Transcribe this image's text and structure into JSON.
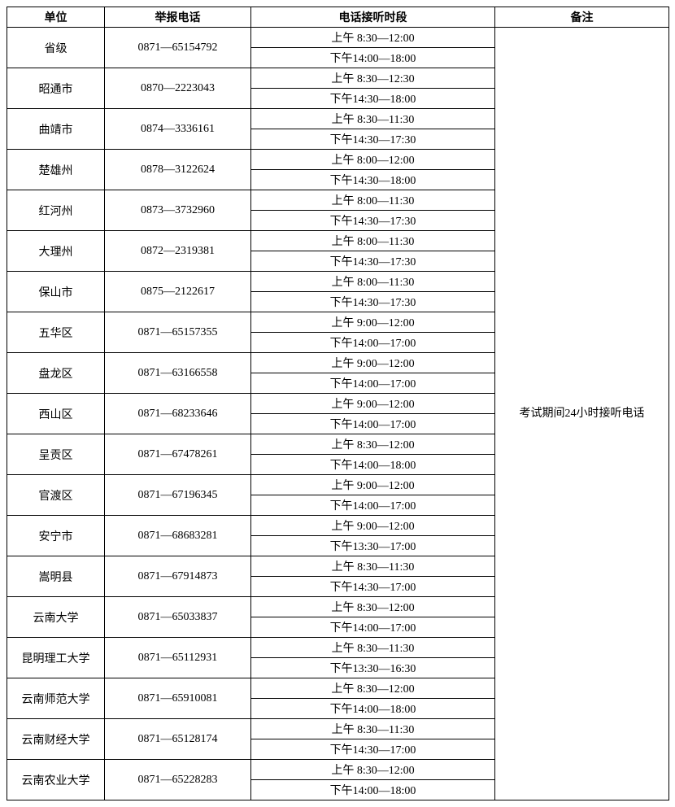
{
  "headers": {
    "unit": "单位",
    "phone": "举报电话",
    "time": "电话接听时段",
    "remark": "备注"
  },
  "remark_text": "考试期间24小时接听电话",
  "rows": [
    {
      "unit": "省级",
      "phone": "0871—65154792",
      "am": "上午 8:30—12:00",
      "pm": "下午14:00—18:00"
    },
    {
      "unit": "昭通市",
      "phone": "0870—2223043",
      "am": "上午 8:30—12:30",
      "pm": "下午14:30—18:00"
    },
    {
      "unit": "曲靖市",
      "phone": "0874—3336161",
      "am": "上午 8:30—11:30",
      "pm": "下午14:30—17:30"
    },
    {
      "unit": "楚雄州",
      "phone": "0878—3122624",
      "am": "上午 8:00—12:00",
      "pm": "下午14:30—18:00"
    },
    {
      "unit": "红河州",
      "phone": "0873—3732960",
      "am": "上午 8:00—11:30",
      "pm": "下午14:30—17:30"
    },
    {
      "unit": "大理州",
      "phone": "0872—2319381",
      "am": "上午 8:00—11:30",
      "pm": "下午14:30—17:30"
    },
    {
      "unit": "保山市",
      "phone": "0875—2122617",
      "am": "上午 8:00—11:30",
      "pm": "下午14:30—17:30"
    },
    {
      "unit": "五华区",
      "phone": "0871—65157355",
      "am": "上午 9:00—12:00",
      "pm": "下午14:00—17:00"
    },
    {
      "unit": "盘龙区",
      "phone": "0871—63166558",
      "am": "上午 9:00—12:00",
      "pm": "下午14:00—17:00"
    },
    {
      "unit": "西山区",
      "phone": "0871—68233646",
      "am": "上午 9:00—12:00",
      "pm": "下午14:00—17:00"
    },
    {
      "unit": "呈贡区",
      "phone": "0871—67478261",
      "am": "上午 8:30—12:00",
      "pm": "下午14:00—18:00"
    },
    {
      "unit": "官渡区",
      "phone": "0871—67196345",
      "am": "上午 9:00—12:00",
      "pm": "下午14:00—17:00"
    },
    {
      "unit": "安宁市",
      "phone": "0871—68683281",
      "am": "上午 9:00—12:00",
      "pm": "下午13:30—17:00"
    },
    {
      "unit": "嵩明县",
      "phone": "0871—67914873",
      "am": "上午 8:30—11:30",
      "pm": "下午14:30—17:00"
    },
    {
      "unit": "云南大学",
      "phone": "0871—65033837",
      "am": "上午 8:30—12:00",
      "pm": "下午14:00—17:00"
    },
    {
      "unit": "昆明理工大学",
      "phone": "0871—65112931",
      "am": "上午 8:30—11:30",
      "pm": "下午13:30—16:30"
    },
    {
      "unit": "云南师范大学",
      "phone": "0871—65910081",
      "am": "上午 8:30—12:00",
      "pm": "下午14:00—18:00"
    },
    {
      "unit": "云南财经大学",
      "phone": "0871—65128174",
      "am": "上午 8:30—11:30",
      "pm": "下午14:30—17:00"
    },
    {
      "unit": "云南农业大学",
      "phone": "0871—65228283",
      "am": "上午 8:30—12:00",
      "pm": "下午14:00—18:00"
    }
  ]
}
